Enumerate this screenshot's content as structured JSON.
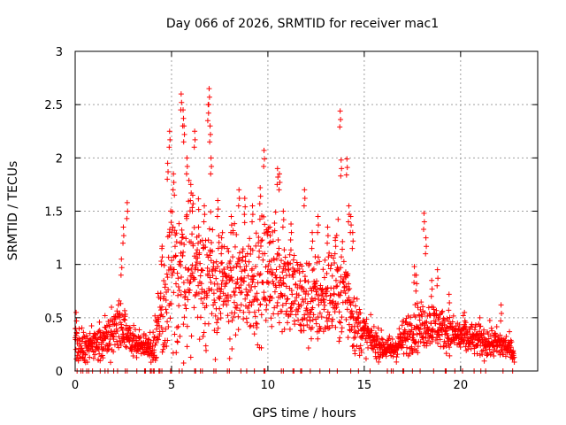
{
  "chart_data": {
    "type": "scatter",
    "title": "Day 066 of 2026, SRMTID for receiver mac1",
    "xlabel": "GPS time / hours",
    "ylabel": "SRMTID / TECUs",
    "xlim": [
      0,
      24
    ],
    "ylim": [
      0,
      3
    ],
    "xticks": [
      0,
      5,
      10,
      15,
      20
    ],
    "xtick_labels": [
      "0",
      "5",
      "10",
      "15",
      "20"
    ],
    "yticks": [
      0,
      0.5,
      1,
      1.5,
      2,
      2.5,
      3
    ],
    "ytick_labels": [
      "0",
      "0.5",
      "1",
      "1.5",
      "2",
      "2.5",
      "3"
    ],
    "grid": true,
    "marker": "+",
    "colors": {
      "series": "#ff0000",
      "axis": "#000000",
      "grid": "#a0a0a0"
    },
    "envelope": {
      "x": [
        0,
        0.5,
        1,
        1.5,
        2,
        2.5,
        3,
        3.5,
        4,
        4.5,
        5,
        5.5,
        6,
        6.5,
        7,
        7.5,
        8,
        8.5,
        9,
        9.5,
        10,
        10.5,
        11,
        11.5,
        12,
        12.5,
        13,
        13.5,
        14,
        14.5,
        15,
        15.5,
        16,
        16.5,
        17,
        17.5,
        18,
        18.5,
        19,
        19.5,
        20,
        20.5,
        21,
        21.5,
        22,
        22.5,
        22.8
      ],
      "center": [
        0.25,
        0.25,
        0.22,
        0.28,
        0.4,
        0.38,
        0.28,
        0.25,
        0.2,
        0.6,
        0.85,
        0.95,
        1.0,
        0.95,
        0.85,
        0.75,
        0.8,
        0.8,
        0.85,
        0.85,
        0.95,
        0.9,
        0.85,
        0.7,
        0.65,
        0.65,
        0.7,
        0.75,
        0.8,
        0.45,
        0.35,
        0.28,
        0.22,
        0.2,
        0.3,
        0.4,
        0.42,
        0.45,
        0.4,
        0.35,
        0.32,
        0.3,
        0.28,
        0.27,
        0.25,
        0.22,
        0.15
      ],
      "spread": [
        0.12,
        0.1,
        0.1,
        0.12,
        0.2,
        0.15,
        0.1,
        0.08,
        0.08,
        0.3,
        0.5,
        0.5,
        0.5,
        0.45,
        0.4,
        0.35,
        0.35,
        0.35,
        0.35,
        0.35,
        0.4,
        0.35,
        0.35,
        0.3,
        0.3,
        0.3,
        0.3,
        0.35,
        0.35,
        0.2,
        0.12,
        0.1,
        0.08,
        0.08,
        0.12,
        0.15,
        0.15,
        0.15,
        0.12,
        0.12,
        0.12,
        0.1,
        0.1,
        0.1,
        0.1,
        0.08,
        0.05
      ]
    },
    "spikes": [
      [
        0.05,
        0.55
      ],
      [
        2.4,
        1.05
      ],
      [
        2.5,
        1.35
      ],
      [
        2.7,
        1.58
      ],
      [
        4.5,
        1.15
      ],
      [
        4.8,
        1.95
      ],
      [
        4.9,
        2.25
      ],
      [
        5.1,
        1.85
      ],
      [
        5.5,
        2.6
      ],
      [
        5.6,
        2.45
      ],
      [
        5.65,
        2.3
      ],
      [
        5.8,
        2.0
      ],
      [
        6.0,
        1.75
      ],
      [
        6.1,
        1.65
      ],
      [
        6.2,
        2.25
      ],
      [
        6.4,
        1.35
      ],
      [
        6.7,
        1.55
      ],
      [
        6.9,
        2.5
      ],
      [
        6.95,
        2.65
      ],
      [
        7.0,
        2.3
      ],
      [
        7.05,
        2.0
      ],
      [
        7.4,
        1.6
      ],
      [
        7.6,
        1.25
      ],
      [
        8.1,
        1.45
      ],
      [
        8.5,
        1.7
      ],
      [
        8.8,
        1.62
      ],
      [
        9.2,
        1.55
      ],
      [
        9.6,
        1.72
      ],
      [
        9.8,
        2.07
      ],
      [
        10.1,
        1.35
      ],
      [
        10.5,
        1.9
      ],
      [
        10.6,
        1.85
      ],
      [
        10.8,
        1.5
      ],
      [
        11.2,
        1.38
      ],
      [
        11.9,
        1.7
      ],
      [
        12.3,
        1.3
      ],
      [
        12.6,
        1.45
      ],
      [
        13.1,
        1.35
      ],
      [
        13.5,
        1.25
      ],
      [
        13.75,
        2.44
      ],
      [
        13.8,
        1.98
      ],
      [
        14.1,
        1.99
      ],
      [
        14.2,
        1.55
      ],
      [
        14.3,
        1.45
      ],
      [
        14.4,
        1.3
      ],
      [
        17.6,
        0.98
      ],
      [
        17.7,
        0.9
      ],
      [
        18.1,
        1.48
      ],
      [
        18.2,
        1.25
      ],
      [
        18.5,
        0.85
      ],
      [
        18.8,
        0.95
      ],
      [
        19.4,
        0.72
      ],
      [
        20.2,
        0.55
      ],
      [
        21.0,
        0.5
      ],
      [
        22.1,
        0.62
      ]
    ],
    "near_zero": [
      0.1,
      0.3,
      0.4,
      0.6,
      0.7,
      0.9,
      1.3,
      1.55,
      1.7,
      2.0,
      2.2,
      2.6,
      2.7,
      3.2,
      3.6,
      3.65,
      3.9,
      3.95,
      4.05,
      4.1,
      4.35,
      4.4,
      4.5,
      4.95,
      5.0,
      5.4,
      5.55,
      6.2,
      6.25,
      6.5,
      6.6,
      7.2,
      7.3,
      7.9,
      8.0,
      8.6,
      8.9,
      9.3,
      9.8,
      9.85,
      10.7,
      10.8,
      11.3,
      11.35,
      11.7,
      11.75,
      12.2,
      12.7,
      13.2,
      13.6,
      14.3,
      14.7,
      15.3,
      16.2,
      16.4,
      16.5,
      17.0,
      17.05,
      17.5,
      17.9,
      18.6,
      19.2,
      19.25,
      19.7,
      20.1,
      20.7,
      21.05,
      21.3,
      22.2,
      22.7
    ]
  }
}
